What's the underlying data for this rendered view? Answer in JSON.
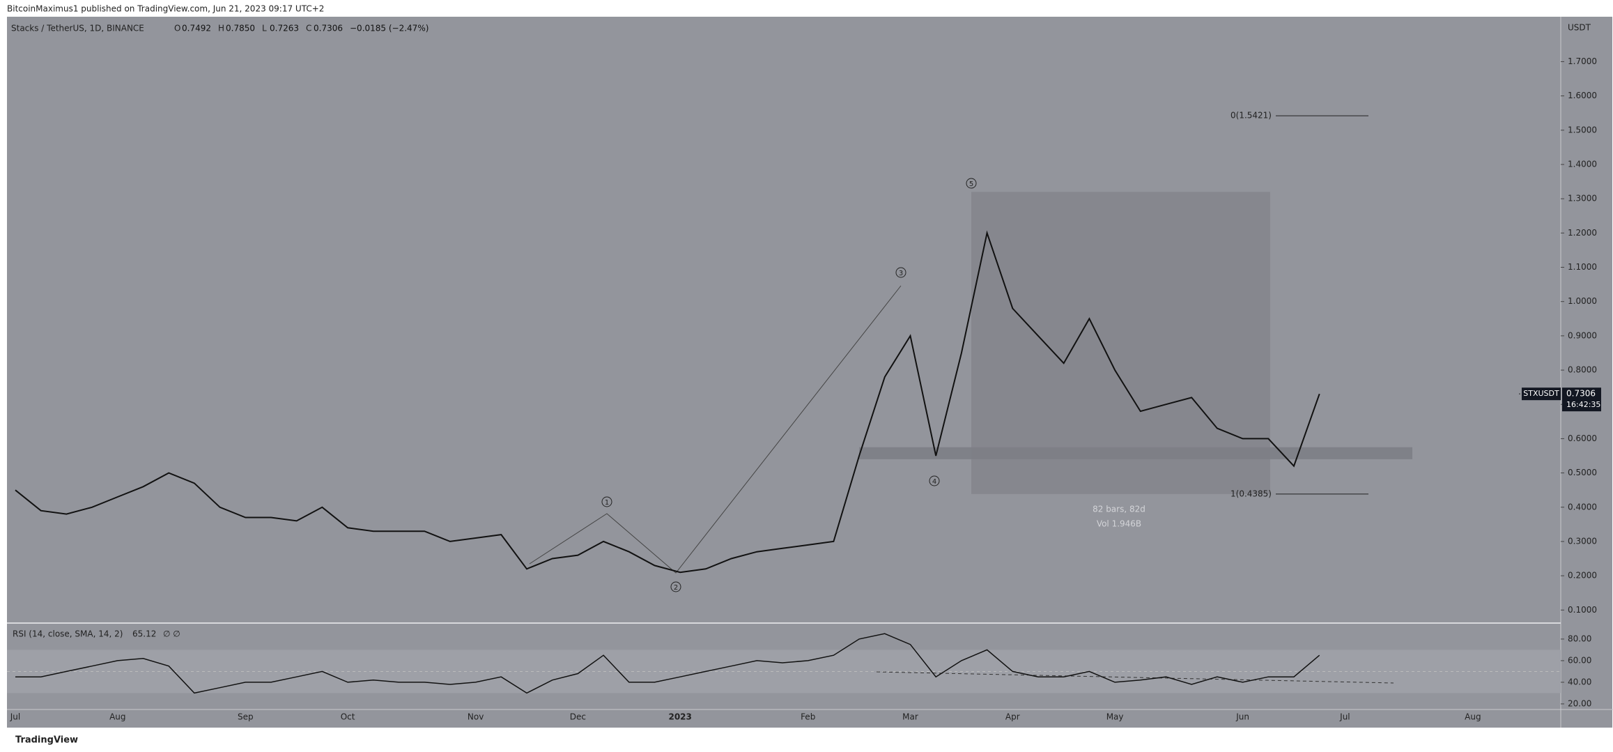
{
  "header": {
    "publisher": "BitcoinMaximus1 published on TradingView.com, Jun 21, 2023 09:17 UTC+2",
    "logo": "TradingView"
  },
  "chart_data": {
    "type": "line",
    "symbol": "Stacks / TetherUS, 1D, BINANCE",
    "ohlc": [
      {
        "key": "O",
        "value": "0.7492"
      },
      {
        "key": "H",
        "value": "0.7850"
      },
      {
        "key": "L",
        "value": "0.7263"
      },
      {
        "key": "C",
        "value": "0.7306"
      }
    ],
    "change": "−0.0185 (−2.47%)",
    "axis_unit": "USDT",
    "categories": [
      "Jul",
      null,
      null,
      null,
      "Aug",
      null,
      null,
      null,
      null,
      "Sep",
      null,
      null,
      null,
      "Oct",
      null,
      null,
      null,
      null,
      "Nov",
      null,
      null,
      null,
      "Dec",
      null,
      null,
      null,
      "2023",
      null,
      null,
      null,
      null,
      "Feb",
      null,
      null,
      null,
      "Mar",
      null,
      null,
      null,
      "Apr",
      null,
      null,
      null,
      "May",
      null,
      null,
      null,
      null,
      "Jun",
      null,
      null,
      null,
      "Jul",
      null,
      null,
      null,
      null,
      "Aug",
      null,
      null,
      null
    ],
    "series": [
      {
        "name": "STXUSDT",
        "color": "#111111",
        "values": [
          0.45,
          0.39,
          0.38,
          0.4,
          0.43,
          0.46,
          0.5,
          0.47,
          0.4,
          0.37,
          0.37,
          0.36,
          0.4,
          0.34,
          0.33,
          0.33,
          0.33,
          0.3,
          0.31,
          0.32,
          0.22,
          0.25,
          0.26,
          0.3,
          0.27,
          0.23,
          0.21,
          0.22,
          0.25,
          0.27,
          0.28,
          0.29,
          0.3,
          0.55,
          0.78,
          0.9,
          0.55,
          0.85,
          1.2,
          0.98,
          0.9,
          0.82,
          0.95,
          0.8,
          0.68,
          0.7,
          0.72,
          0.63,
          0.6,
          0.6,
          0.52,
          0.7306,
          null,
          null,
          null,
          null,
          null,
          null,
          null,
          null,
          null
        ]
      }
    ],
    "last_price": {
      "value": 0.7306,
      "label": "0.7306",
      "countdown": "16:42:35"
    },
    "ylim": [
      0.064,
      1.829
    ],
    "yticks": [
      {
        "value": 0.1,
        "label": "0.1000"
      },
      {
        "value": 0.2,
        "label": "0.2000"
      },
      {
        "value": 0.3,
        "label": "0.3000"
      },
      {
        "value": 0.4,
        "label": "0.4000"
      },
      {
        "value": 0.5,
        "label": "0.5000"
      },
      {
        "value": 0.6,
        "label": "0.6000"
      },
      {
        "value": 0.7,
        "label": "0.7000"
      },
      {
        "value": 0.8,
        "label": "0.8000"
      },
      {
        "value": 0.9,
        "label": "0.9000"
      },
      {
        "value": 1.0,
        "label": "1.0000"
      },
      {
        "value": 1.1,
        "label": "1.1000"
      },
      {
        "value": 1.2,
        "label": "1.2000"
      },
      {
        "value": 1.3,
        "label": "1.3000"
      },
      {
        "value": 1.4,
        "label": "1.4000"
      },
      {
        "value": 1.5,
        "label": "1.5000"
      },
      {
        "value": 1.6,
        "label": "1.6000"
      },
      {
        "value": 1.7,
        "label": "1.7000"
      }
    ],
    "fib_levels": [
      {
        "value": 1.5421,
        "label": "0(1.5421)"
      },
      {
        "value": 0.4385,
        "label": "1(0.4385)"
      }
    ],
    "support_zone": [
      0.54,
      0.575
    ],
    "range_box": {
      "top": 1.32,
      "bottom": 0.4385,
      "bars": "82 bars, 82d",
      "volume": "Vol 1.946B"
    },
    "waves": [
      "1",
      "2",
      "3",
      "4",
      "5"
    ],
    "rsi": {
      "title": "RSI (14, close, SMA, 14, 2)",
      "value_label": "65.12",
      "extra": "∅ ∅",
      "values": [
        45,
        45,
        50,
        55,
        60,
        62,
        55,
        30,
        35,
        40,
        40,
        45,
        50,
        40,
        42,
        40,
        40,
        38,
        40,
        45,
        30,
        42,
        48,
        65,
        40,
        40,
        45,
        50,
        55,
        60,
        58,
        60,
        65,
        80,
        85,
        75,
        45,
        60,
        70,
        50,
        45,
        45,
        50,
        40,
        42,
        45,
        38,
        45,
        40,
        45,
        45,
        65,
        null,
        null,
        null,
        null,
        null,
        null,
        null,
        null,
        null
      ],
      "color": "#111111",
      "band": [
        30,
        70
      ],
      "ylim": [
        16.1,
        93.5
      ],
      "yticks": [
        {
          "value": 20,
          "label": "20.00"
        },
        {
          "value": 40,
          "label": "40.00"
        },
        {
          "value": 60,
          "label": "60.00"
        },
        {
          "value": 80,
          "label": "80.00"
        }
      ]
    }
  }
}
